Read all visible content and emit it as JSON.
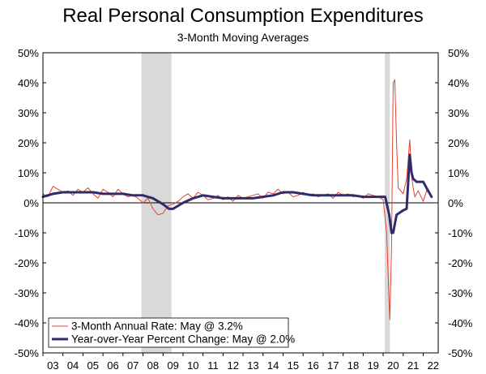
{
  "chart_data": {
    "type": "line",
    "title": "Real Personal Consumption Expenditures",
    "subtitle": "3-Month Moving Averages",
    "ylim": [
      -50,
      50
    ],
    "y_ticks": [
      "50%",
      "40%",
      "30%",
      "20%",
      "10%",
      "0%",
      "-10%",
      "-20%",
      "-30%",
      "-40%",
      "-50%"
    ],
    "x_range": [
      2003,
      2022.75
    ],
    "x_ticks": [
      "03",
      "04",
      "05",
      "06",
      "07",
      "08",
      "09",
      "10",
      "11",
      "12",
      "13",
      "14",
      "15",
      "16",
      "17",
      "18",
      "19",
      "20",
      "21",
      "22"
    ],
    "recessions": [
      [
        2007.92,
        2009.42
      ],
      [
        2020.08,
        2020.33
      ]
    ],
    "colors": {
      "annual_rate": "#e8412c",
      "yoy": "#2e2d6b",
      "recession": "#d9d9d9"
    },
    "legend": [
      "3-Month Annual Rate: May @ 3.2%",
      "Year-over-Year Percent Change: May @ 2.0%"
    ],
    "series": [
      {
        "name": "3-Month Annual Rate: May @ 3.2%",
        "x": [
          2003.0,
          2003.25,
          2003.5,
          2003.75,
          2004.0,
          2004.25,
          2004.5,
          2004.75,
          2005.0,
          2005.25,
          2005.5,
          2005.75,
          2006.0,
          2006.25,
          2006.5,
          2006.75,
          2007.0,
          2007.25,
          2007.5,
          2007.75,
          2008.0,
          2008.25,
          2008.5,
          2008.75,
          2009.0,
          2009.25,
          2009.5,
          2009.75,
          2010.0,
          2010.25,
          2010.5,
          2010.75,
          2011.0,
          2011.25,
          2011.5,
          2011.75,
          2012.0,
          2012.25,
          2012.5,
          2012.75,
          2013.0,
          2013.25,
          2013.5,
          2013.75,
          2014.0,
          2014.25,
          2014.5,
          2014.75,
          2015.0,
          2015.25,
          2015.5,
          2015.75,
          2016.0,
          2016.25,
          2016.5,
          2016.75,
          2017.0,
          2017.25,
          2017.5,
          2017.75,
          2018.0,
          2018.25,
          2018.5,
          2018.75,
          2019.0,
          2019.25,
          2019.5,
          2019.75,
          2020.0,
          2020.17,
          2020.33,
          2020.42,
          2020.5,
          2020.58,
          2020.67,
          2020.75,
          2021.0,
          2021.17,
          2021.33,
          2021.42,
          2021.5,
          2021.58,
          2021.75,
          2022.0,
          2022.17,
          2022.33
        ],
        "values": [
          3.0,
          2.0,
          5.5,
          4.5,
          3.5,
          4.0,
          2.5,
          4.5,
          3.5,
          5.0,
          3.0,
          1.5,
          4.5,
          3.5,
          2.0,
          4.5,
          3.0,
          2.0,
          2.5,
          1.5,
          0.0,
          1.5,
          -2.0,
          -4.0,
          -3.5,
          -1.0,
          -0.5,
          0.5,
          2.0,
          3.0,
          1.5,
          3.5,
          2.5,
          1.0,
          1.5,
          2.5,
          1.0,
          2.0,
          0.5,
          2.5,
          1.5,
          2.0,
          2.5,
          3.0,
          1.5,
          3.5,
          3.0,
          4.5,
          3.0,
          3.5,
          2.0,
          2.5,
          3.5,
          2.5,
          3.0,
          2.0,
          2.5,
          3.0,
          1.5,
          3.5,
          2.5,
          3.0,
          2.0,
          2.5,
          1.5,
          3.0,
          2.5,
          2.0,
          1.0,
          -10.0,
          -39.0,
          -15.0,
          40.0,
          41.0,
          20.0,
          5.0,
          3.0,
          8.0,
          21.0,
          9.0,
          5.0,
          2.0,
          4.0,
          0.5,
          4.0,
          3.2
        ]
      },
      {
        "name": "Year-over-Year Percent Change: May @ 2.0%",
        "x": [
          2003.0,
          2003.5,
          2004.0,
          2004.5,
          2005.0,
          2005.5,
          2006.0,
          2006.5,
          2007.0,
          2007.5,
          2008.0,
          2008.5,
          2009.0,
          2009.3,
          2009.5,
          2010.0,
          2010.5,
          2011.0,
          2011.5,
          2012.0,
          2012.5,
          2013.0,
          2013.5,
          2014.0,
          2014.5,
          2015.0,
          2015.5,
          2016.0,
          2016.5,
          2017.0,
          2017.5,
          2018.0,
          2018.5,
          2019.0,
          2019.5,
          2020.0,
          2020.1,
          2020.3,
          2020.42,
          2020.5,
          2020.67,
          2021.0,
          2021.17,
          2021.33,
          2021.42,
          2021.5,
          2021.67,
          2022.0,
          2022.25,
          2022.42
        ],
        "values": [
          2.0,
          3.0,
          3.5,
          3.5,
          3.5,
          3.5,
          3.0,
          3.0,
          3.0,
          2.5,
          2.5,
          1.5,
          -0.5,
          -2.0,
          -2.0,
          0.0,
          1.5,
          2.5,
          2.0,
          1.5,
          1.5,
          1.5,
          1.5,
          2.0,
          2.5,
          3.5,
          3.5,
          3.0,
          2.5,
          2.5,
          2.5,
          2.5,
          2.5,
          2.0,
          2.0,
          2.0,
          2.0,
          -4.0,
          -10.0,
          -10.0,
          -4.0,
          -2.5,
          -2.0,
          16.0,
          10.0,
          8.0,
          7.0,
          7.0,
          4.0,
          2.0
        ]
      }
    ]
  }
}
